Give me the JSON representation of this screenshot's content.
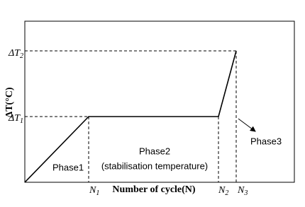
{
  "axes": {
    "y_label": "ΔT(°C)",
    "x_label": "Number of cycle(N)",
    "y_ticks": [
      {
        "main": "ΔT",
        "sub": "2"
      },
      {
        "main": "ΔT",
        "sub": "1"
      }
    ],
    "x_ticks": [
      {
        "main": "N",
        "sub": "1"
      },
      {
        "main": "N",
        "sub": "2"
      },
      {
        "main": "N",
        "sub": "3"
      }
    ]
  },
  "phases": [
    "Phase1",
    "Phase2",
    "(stabilisation temperature)",
    "Phase3"
  ]
}
